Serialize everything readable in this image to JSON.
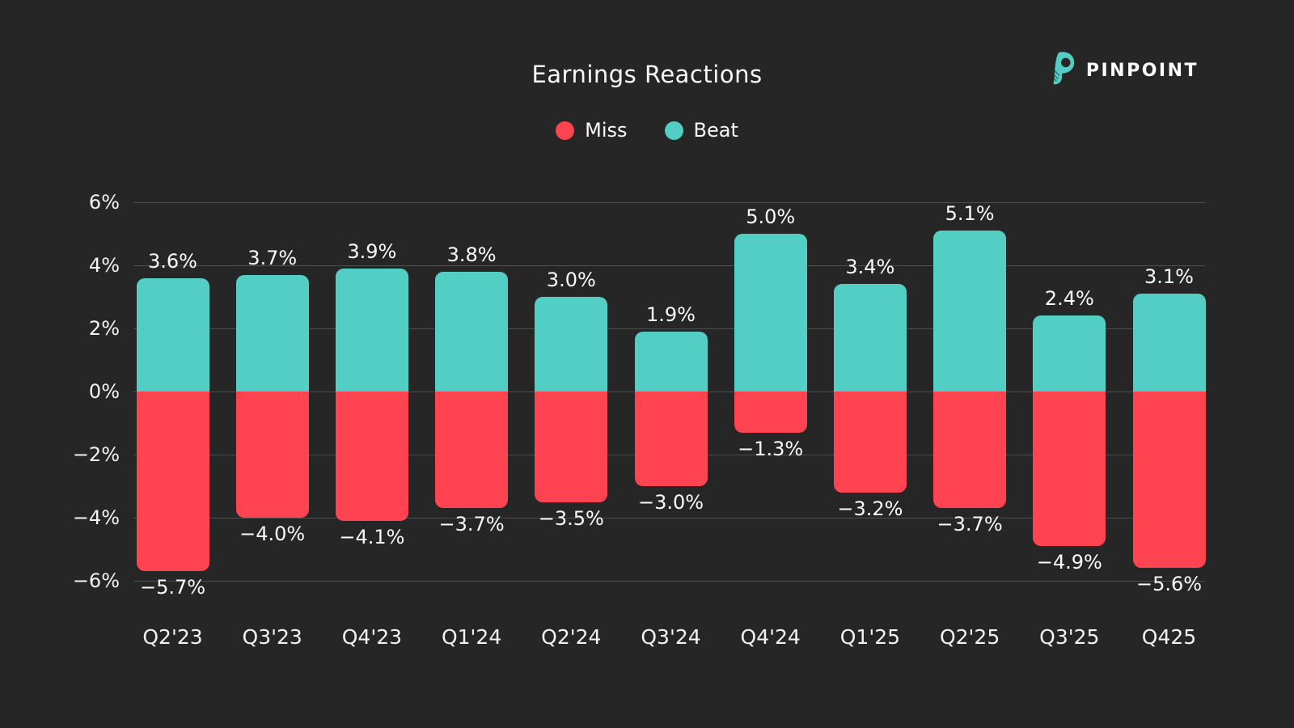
{
  "header": {
    "title": "Earnings Reactions",
    "brand": {
      "name": "PINPOINT",
      "color": "#52CEC5"
    }
  },
  "legend": [
    {
      "label": "Miss",
      "color": "#FF4351"
    },
    {
      "label": "Beat",
      "color": "#52CEC5"
    }
  ],
  "colors": {
    "background": "#262626",
    "beat": "#52CEC5",
    "miss": "#FF4351",
    "gridline": "#4b4d4e",
    "text": "#fafafa"
  },
  "chart_data": {
    "type": "bar",
    "title": "Earnings Reactions",
    "subtitle": "",
    "xlabel": "",
    "ylabel": "",
    "grid": true,
    "legend_position": "top",
    "ylim": [
      -6.9,
      6.9
    ],
    "y_ticks": [
      {
        "value": 6,
        "label": "6%"
      },
      {
        "value": 4,
        "label": "4%"
      },
      {
        "value": 2,
        "label": "2%"
      },
      {
        "value": 0,
        "label": "0%"
      },
      {
        "value": -2,
        "label": "−2%"
      },
      {
        "value": -4,
        "label": "−4%"
      },
      {
        "value": -6,
        "label": "−6%"
      }
    ],
    "categories": [
      "Q2'23",
      "Q3'23",
      "Q4'23",
      "Q1'24",
      "Q2'24",
      "Q3'24",
      "Q4'24",
      "Q1'25",
      "Q2'25",
      "Q3'25",
      "Q425"
    ],
    "series": [
      {
        "name": "Beat",
        "color": "#52CEC5",
        "values": [
          3.6,
          3.7,
          3.9,
          3.8,
          3.0,
          1.9,
          5.0,
          3.4,
          5.1,
          2.4,
          3.1
        ],
        "labels": [
          "3.6%",
          "3.7%",
          "3.9%",
          "3.8%",
          "3.0%",
          "1.9%",
          "5.0%",
          "3.4%",
          "5.1%",
          "2.4%",
          "3.1%"
        ]
      },
      {
        "name": "Miss",
        "color": "#FF4351",
        "values": [
          -5.7,
          -4.0,
          -4.1,
          -3.7,
          -3.5,
          -3.0,
          -1.3,
          -3.2,
          -3.7,
          -4.9,
          -5.6
        ],
        "labels": [
          "−5.7%",
          "−4.0%",
          "−4.1%",
          "−3.7%",
          "−3.5%",
          "−3.0%",
          "−1.3%",
          "−3.2%",
          "−3.7%",
          "−4.9%",
          "−5.6%"
        ]
      }
    ]
  }
}
